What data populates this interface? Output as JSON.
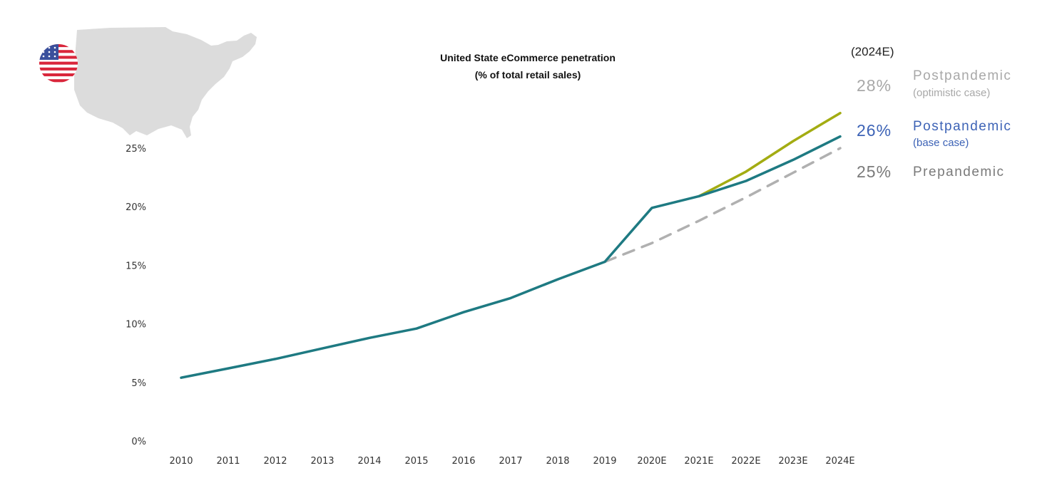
{
  "chart_data": {
    "type": "line",
    "title": "United State eCommerce penetration",
    "subtitle": "(% of total retail sales)",
    "x": [
      "2010",
      "2011",
      "2012",
      "2013",
      "2014",
      "2015",
      "2016",
      "2017",
      "2018",
      "2019",
      "2020E",
      "2021E",
      "2022E",
      "2023E",
      "2024E"
    ],
    "yticks": [
      "0%",
      "5%",
      "10%",
      "15%",
      "20%",
      "25%"
    ],
    "ylim": [
      0,
      25
    ],
    "grid": false,
    "series": [
      {
        "name": "Postpandemic (base case)",
        "color": "#1e7a82",
        "dashed": false,
        "values": [
          5.4,
          6.2,
          7.0,
          7.9,
          8.8,
          9.6,
          11.0,
          12.2,
          13.8,
          15.3,
          19.9,
          20.9,
          22.2,
          24.0,
          26.0
        ]
      },
      {
        "name": "Postpandemic (optimistic case)",
        "color": "#a3ac12",
        "dashed": false,
        "values": [
          null,
          null,
          null,
          null,
          null,
          null,
          null,
          null,
          null,
          null,
          null,
          20.9,
          23.0,
          25.6,
          28.0
        ]
      },
      {
        "name": "Prepandemic",
        "color": "#b0b0b0",
        "dashed": true,
        "values": [
          null,
          null,
          null,
          null,
          null,
          null,
          null,
          null,
          null,
          15.3,
          16.9,
          18.8,
          20.8,
          22.9,
          25.0
        ]
      }
    ]
  },
  "annotations": {
    "header": "(2024E)",
    "optimistic": {
      "pct": "28%",
      "label": "Postpandemic",
      "sub": "(optimistic case)",
      "color": "#a8a8a8"
    },
    "base": {
      "pct": "26%",
      "label": "Postpandemic",
      "sub": "(base case)",
      "color": "#3d63b6"
    },
    "pre": {
      "pct": "25%",
      "label": "Prepandemic",
      "color": "#7a7a7a"
    }
  },
  "decor": {
    "map_color": "#dcdcdc",
    "flag_colors": {
      "red": "#d9263b",
      "white": "#ffffff",
      "blue": "#3a4f9c"
    }
  }
}
